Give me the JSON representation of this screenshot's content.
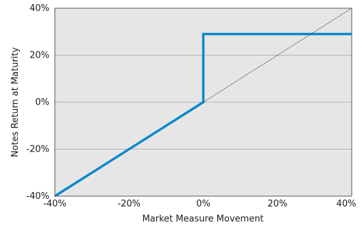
{
  "chart_data": {
    "type": "line",
    "title": "",
    "xlabel": "Market Measure Movement",
    "ylabel": "Notes Return at Maturity",
    "xlim": [
      -40,
      40
    ],
    "ylim": [
      -40,
      40
    ],
    "x_ticks": [
      -40,
      -20,
      0,
      20,
      40
    ],
    "y_ticks": [
      -40,
      -20,
      0,
      20,
      40
    ],
    "x_tick_labels": [
      "-40%",
      "-20%",
      "0%",
      "20%",
      "40%"
    ],
    "y_tick_labels": [
      "-40%",
      "-20%",
      "0%",
      "20%",
      "40%"
    ],
    "grid": "horizontal",
    "series": [
      {
        "style": "solid",
        "color": "#0a88cc",
        "points": [
          [
            -40,
            -40
          ],
          [
            0,
            0
          ],
          [
            0,
            29
          ],
          [
            40,
            29
          ]
        ]
      },
      {
        "style": "dotted",
        "color": "#333333",
        "points": [
          [
            0,
            0
          ],
          [
            40,
            40
          ]
        ]
      }
    ],
    "plot_background": "#e6e6e6",
    "grid_color": "#b3b3b3"
  }
}
